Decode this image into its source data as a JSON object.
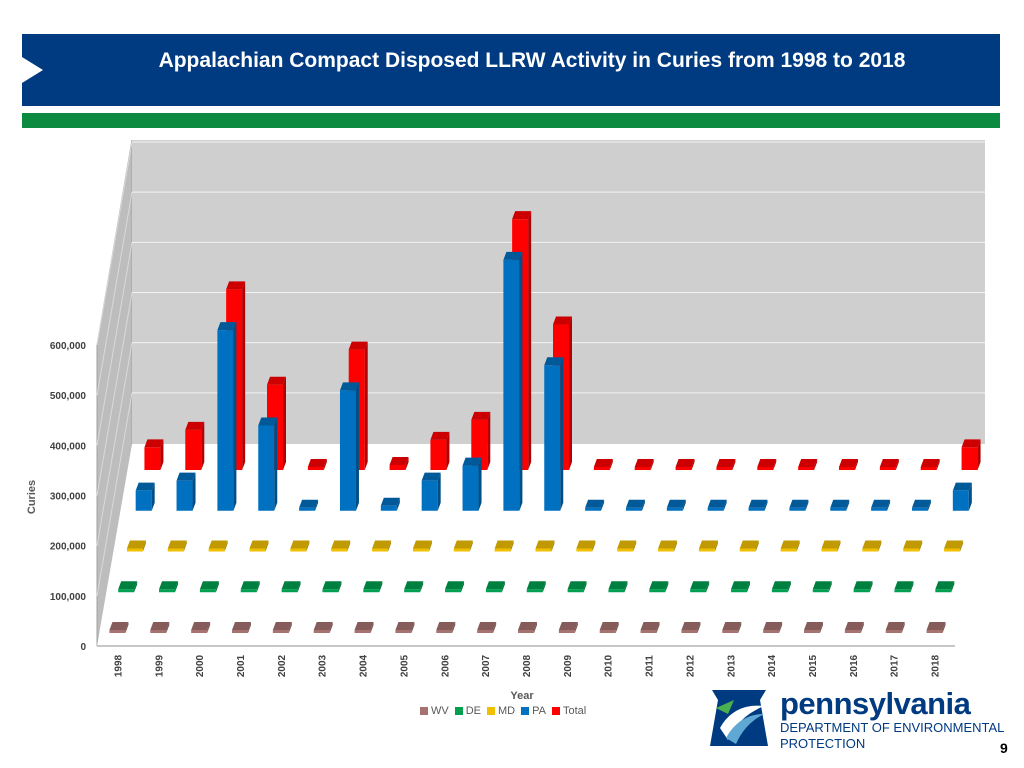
{
  "header": {
    "title": "Appalachian Compact Disposed LLRW Activity in Curies from 1998 to 2018"
  },
  "footer": {
    "logo_name": "pennsylvania",
    "logo_dept": "DEPARTMENT OF ENVIRONMENTAL",
    "logo_protection": "PROTECTION",
    "page_number": "9"
  },
  "colors": {
    "WV": "#A77370",
    "DE": "#00A050",
    "MD": "#F0C000",
    "PA": "#0070C0",
    "Total": "#FF0000"
  },
  "chart_data": {
    "type": "bar",
    "subtype": "3d-column",
    "title": "Appalachian Compact Disposed LLRW Activity in Curies from 1998 to 2018",
    "xlabel": "Year",
    "ylabel": "Curies",
    "ylim": [
      0,
      600000
    ],
    "yticks": [
      "0",
      "100,000",
      "200,000",
      "300,000",
      "400,000",
      "500,000",
      "600,000"
    ],
    "legend_position": "bottom",
    "categories": [
      "1998",
      "1999",
      "2000",
      "2001",
      "2002",
      "2003",
      "2004",
      "2005",
      "2006",
      "2007",
      "2008",
      "2009",
      "2010",
      "2011",
      "2012",
      "2013",
      "2014",
      "2015",
      "2016",
      "2017",
      "2018"
    ],
    "series": [
      {
        "name": "WV",
        "values": [
          0,
          0,
          0,
          0,
          0,
          0,
          0,
          0,
          0,
          0,
          0,
          0,
          0,
          0,
          0,
          0,
          0,
          0,
          0,
          0,
          0
        ]
      },
      {
        "name": "DE",
        "values": [
          0,
          0,
          0,
          0,
          0,
          0,
          0,
          0,
          0,
          0,
          0,
          0,
          0,
          0,
          0,
          0,
          0,
          0,
          0,
          0,
          0
        ]
      },
      {
        "name": "MD",
        "values": [
          0,
          0,
          0,
          0,
          0,
          0,
          2000,
          0,
          0,
          5000,
          0,
          0,
          0,
          0,
          0,
          0,
          0,
          0,
          0,
          0,
          0
        ]
      },
      {
        "name": "PA",
        "values": [
          40000,
          60000,
          360000,
          170000,
          5000,
          240000,
          10000,
          60000,
          90000,
          500000,
          290000,
          0,
          0,
          0,
          0,
          0,
          0,
          0,
          0,
          0,
          40000
        ]
      },
      {
        "name": "Total",
        "values": [
          45000,
          80000,
          360000,
          170000,
          5000,
          240000,
          10000,
          60000,
          100000,
          500000,
          290000,
          0,
          0,
          0,
          0,
          0,
          0,
          0,
          0,
          0,
          45000
        ]
      }
    ]
  }
}
